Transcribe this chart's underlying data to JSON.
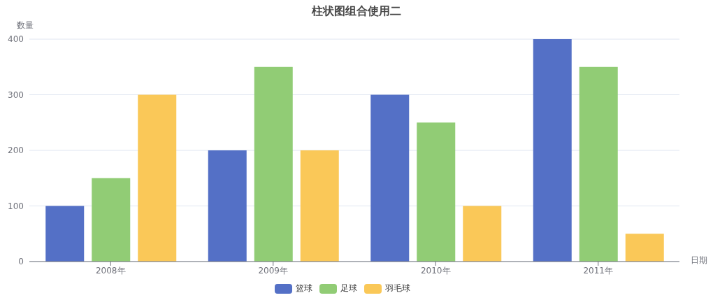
{
  "chart_data": {
    "type": "bar",
    "title": "柱状图组合使用二",
    "xlabel": "日期",
    "ylabel": "数量",
    "categories": [
      "2008年",
      "2009年",
      "2010年",
      "2011年"
    ],
    "series": [
      {
        "name": "篮球",
        "color": "#5470c6",
        "values": [
          100,
          200,
          300,
          400
        ]
      },
      {
        "name": "足球",
        "color": "#91cc75",
        "values": [
          150,
          350,
          250,
          350
        ]
      },
      {
        "name": "羽毛球",
        "color": "#fac858",
        "values": [
          300,
          200,
          100,
          50
        ]
      }
    ],
    "ylim": [
      0,
      400
    ],
    "yticks": [
      0,
      100,
      200,
      300,
      400
    ],
    "grid": "y",
    "legend": "bottom"
  }
}
